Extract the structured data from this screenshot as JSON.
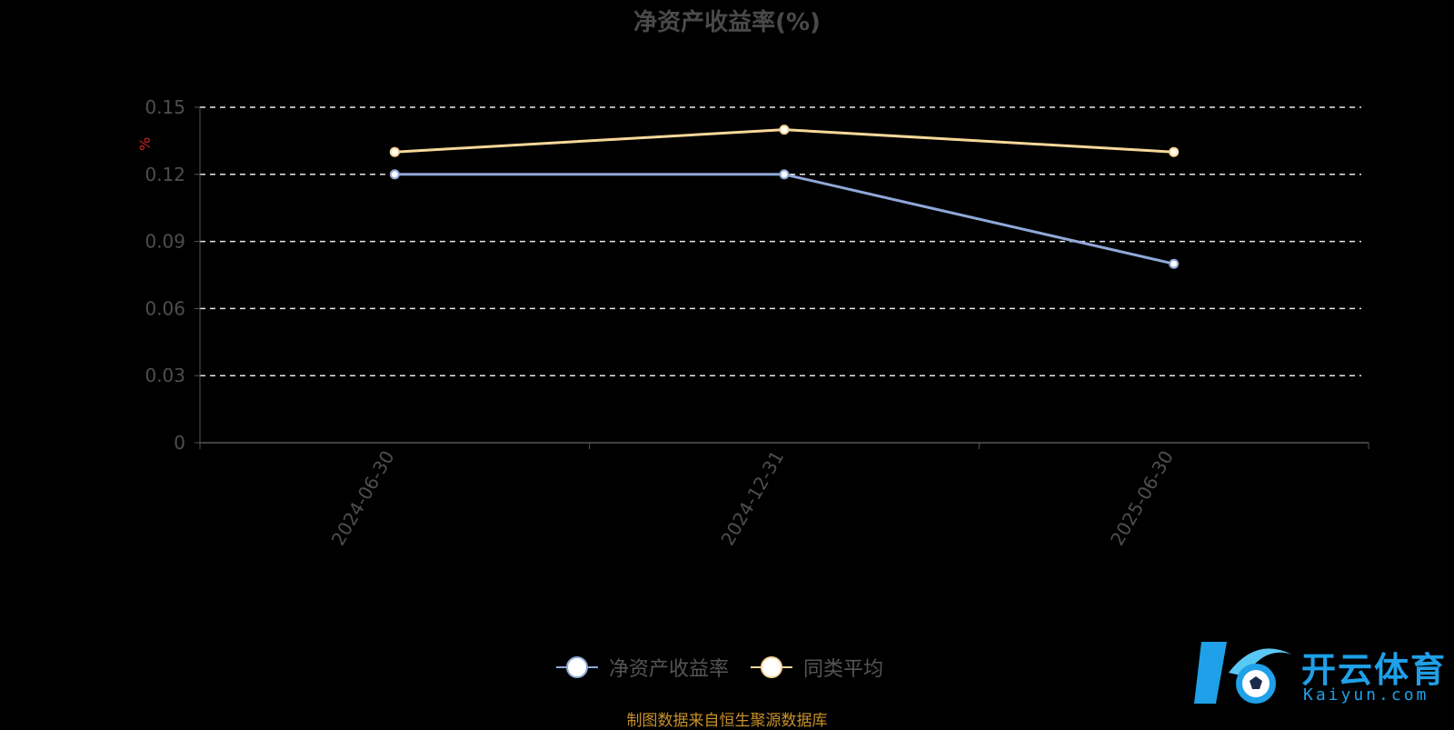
{
  "chart_data": {
    "type": "line",
    "title": "净资产收益率(%)",
    "ylabel": "%",
    "xlabel": "",
    "categories": [
      "2024-06-30",
      "2024-12-31",
      "2025-06-30"
    ],
    "ylim": [
      0,
      0.15
    ],
    "yticks": [
      "0",
      "0.03",
      "0.06",
      "0.09",
      "0.12",
      "0.15"
    ],
    "grid": true,
    "legend_position": "bottom",
    "series": [
      {
        "name": "净资产收益率",
        "values": [
          0.12,
          0.12,
          0.08
        ],
        "color": "#8fa8d8"
      },
      {
        "name": "同类平均",
        "values": [
          0.13,
          0.14,
          0.13
        ],
        "color": "#f7d79a"
      }
    ]
  },
  "colors": {
    "unit_label": "#cc2222",
    "source_text": "#c8902a",
    "logo": "#1fa0e8"
  },
  "footer": {
    "source": "制图数据来自恒生聚源数据库"
  },
  "logo": {
    "text": "开云体育",
    "sub": "Kaiyun.com"
  }
}
